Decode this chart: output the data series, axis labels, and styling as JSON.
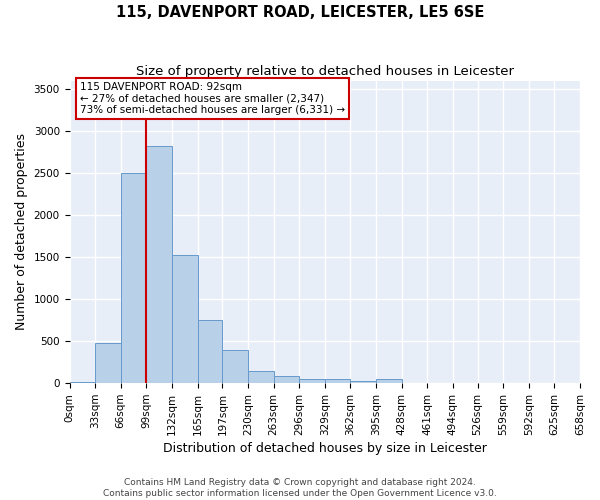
{
  "title": "115, DAVENPORT ROAD, LEICESTER, LE5 6SE",
  "subtitle": "Size of property relative to detached houses in Leicester",
  "xlabel": "Distribution of detached houses by size in Leicester",
  "ylabel": "Number of detached properties",
  "bar_color": "#b8d0e8",
  "bar_edge_color": "#6699cc",
  "background_color": "#e8eef8",
  "grid_color": "#ffffff",
  "fig_background": "#ffffff",
  "bins": [
    0,
    33,
    66,
    99,
    132,
    165,
    197,
    230,
    263,
    296,
    329,
    362,
    395,
    428,
    461,
    494,
    526,
    559,
    592,
    625,
    658
  ],
  "bin_labels": [
    "0sqm",
    "33sqm",
    "66sqm",
    "99sqm",
    "132sqm",
    "165sqm",
    "197sqm",
    "230sqm",
    "263sqm",
    "296sqm",
    "329sqm",
    "362sqm",
    "395sqm",
    "428sqm",
    "461sqm",
    "494sqm",
    "526sqm",
    "559sqm",
    "592sqm",
    "625sqm",
    "658sqm"
  ],
  "values": [
    20,
    480,
    2500,
    2820,
    1520,
    750,
    390,
    145,
    80,
    55,
    55,
    30,
    50,
    0,
    0,
    0,
    0,
    0,
    0,
    0
  ],
  "ylim": [
    0,
    3600
  ],
  "yticks": [
    0,
    500,
    1000,
    1500,
    2000,
    2500,
    3000,
    3500
  ],
  "property_line_x": 99,
  "property_line_label": "115 DAVENPORT ROAD: 92sqm",
  "annotation_line1": "← 27% of detached houses are smaller (2,347)",
  "annotation_line2": "73% of semi-detached houses are larger (6,331) →",
  "red_line_color": "#cc0000",
  "annotation_box_color": "#ffffff",
  "annotation_box_edge": "#cc0000",
  "footer_line1": "Contains HM Land Registry data © Crown copyright and database right 2024.",
  "footer_line2": "Contains public sector information licensed under the Open Government Licence v3.0.",
  "title_fontsize": 10.5,
  "subtitle_fontsize": 9.5,
  "axis_label_fontsize": 9,
  "tick_fontsize": 7.5,
  "annotation_fontsize": 7.5,
  "footer_fontsize": 6.5
}
